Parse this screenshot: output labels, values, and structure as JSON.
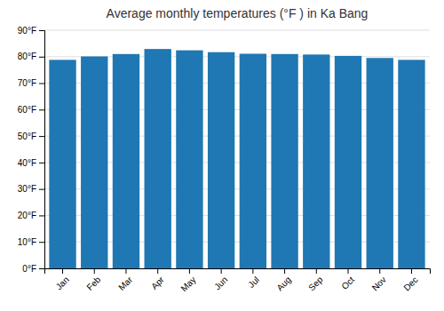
{
  "chart_data": {
    "type": "bar",
    "title": "Average monthly temperatures (°F ) in Ka Bang",
    "categories": [
      "Jan",
      "Feb",
      "Mar",
      "Apr",
      "May",
      "Jun",
      "Jul",
      "Aug",
      "Sep",
      "Oct",
      "Nov",
      "Dec"
    ],
    "values": [
      78.8,
      80.1,
      81.0,
      82.9,
      82.4,
      81.7,
      81.1,
      81.0,
      80.8,
      80.3,
      79.5,
      78.8
    ],
    "ylim": [
      0,
      90
    ],
    "yticks": [
      {
        "value": 0,
        "label": "0°F"
      },
      {
        "value": 10,
        "label": "10°F"
      },
      {
        "value": 20,
        "label": "20°F"
      },
      {
        "value": 30,
        "label": "30°F"
      },
      {
        "value": 40,
        "label": "40°F"
      },
      {
        "value": 50,
        "label": "50°F"
      },
      {
        "value": 60,
        "label": "60°F"
      },
      {
        "value": 70,
        "label": "70°F"
      },
      {
        "value": 80,
        "label": "80°F"
      },
      {
        "value": 90,
        "label": "90°F"
      }
    ],
    "grid": true
  }
}
